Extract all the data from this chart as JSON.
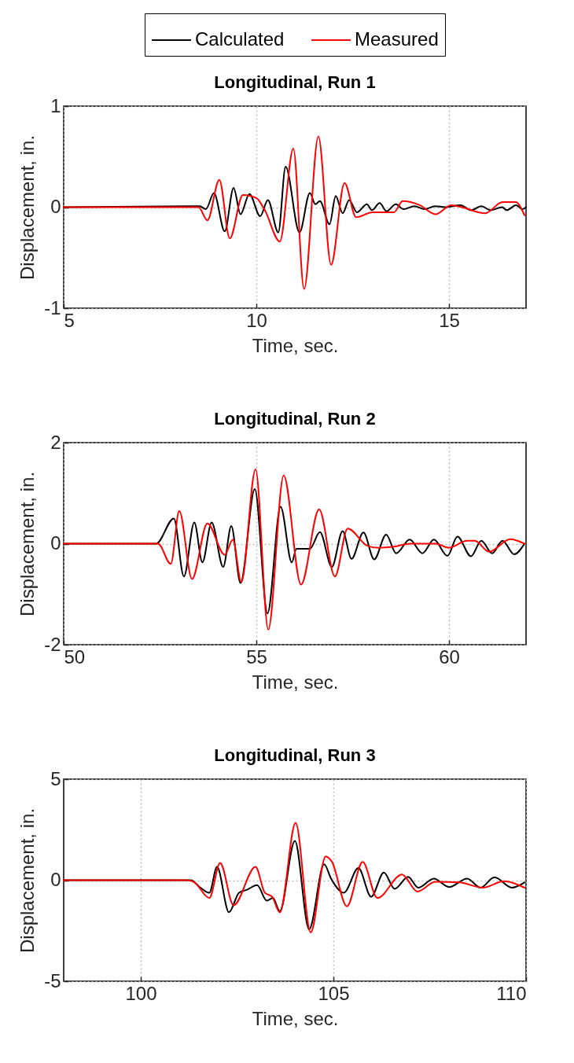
{
  "chart_data": [
    {
      "type": "line",
      "title": "Longitudinal, Run 1",
      "xlabel": "Time, sec.",
      "ylabel": "Displacement, in.",
      "xlim": [
        5,
        17
      ],
      "xticks": [
        5,
        10,
        15
      ],
      "ylim": [
        -1,
        1
      ],
      "yticks": [
        -1,
        0,
        1
      ],
      "grid": true,
      "legend": "top",
      "series": [
        {
          "name": "Calculated",
          "color": "#000000",
          "x": [
            5,
            8.53,
            8.69,
            8.9,
            9.18,
            9.41,
            9.59,
            9.82,
            10.1,
            10.3,
            10.57,
            10.76,
            11.12,
            11.39,
            11.53,
            11.65,
            11.9,
            12.06,
            12.24,
            12.41,
            12.61,
            12.87,
            13.0,
            13.2,
            13.38,
            13.62,
            13.82,
            14.1,
            14.37,
            14.64,
            14.9,
            15.3,
            15.57,
            15.84,
            16.08,
            16.38,
            16.5,
            16.74,
            16.91,
            17
          ],
          "values": [
            0,
            0.01,
            -0.02,
            0.14,
            -0.24,
            0.19,
            -0.07,
            0.13,
            -0.09,
            0.07,
            -0.25,
            0.4,
            -0.25,
            0.14,
            0.03,
            0.06,
            -0.17,
            0.11,
            -0.06,
            0.07,
            -0.05,
            0.03,
            -0.03,
            0.04,
            -0.04,
            0.03,
            -0.02,
            0.01,
            -0.02,
            0.01,
            0,
            0.02,
            -0.03,
            0.01,
            -0.03,
            0,
            -0.03,
            0.02,
            -0.02,
            0
          ]
        },
        {
          "name": "Measured",
          "color": "#ff0000",
          "x": [
            5,
            8.5,
            8.73,
            9.04,
            9.31,
            9.65,
            10.0,
            10.22,
            10.61,
            10.96,
            11.24,
            11.61,
            11.94,
            12.29,
            12.59,
            13.02,
            13.57,
            13.8,
            14.24,
            14.65,
            15.06,
            15.33,
            15.94,
            16.39,
            16.73,
            16.96
          ],
          "values": [
            0,
            0,
            -0.13,
            0.27,
            -0.31,
            0.12,
            0.09,
            -0.03,
            -0.34,
            0.58,
            -0.81,
            0.7,
            -0.57,
            0.24,
            -0.1,
            -0.05,
            -0.05,
            0.06,
            0.02,
            -0.07,
            0.02,
            0,
            -0.06,
            0.05,
            0.05,
            -0.08
          ]
        }
      ]
    },
    {
      "type": "line",
      "title": "Longitudinal, Run 2",
      "xlabel": "Time, sec.",
      "ylabel": "Displacement, in.",
      "xlim": [
        50,
        62
      ],
      "xticks": [
        50,
        55,
        60
      ],
      "ylim": [
        -2,
        2
      ],
      "yticks": [
        -2,
        0,
        2
      ],
      "grid": true,
      "series": [
        {
          "name": "Calculated",
          "color": "#000000",
          "x": [
            50,
            52.4,
            52.86,
            53.12,
            53.39,
            53.6,
            53.84,
            54.14,
            54.35,
            54.59,
            54.96,
            55.29,
            55.63,
            55.92,
            56.04,
            56.39,
            56.65,
            56.96,
            57.24,
            57.47,
            57.78,
            58.06,
            58.37,
            58.63,
            58.98,
            59.31,
            59.61,
            59.96,
            60.22,
            60.57,
            60.84,
            61.12,
            61.39,
            61.69,
            61.96
          ],
          "values": [
            0,
            0,
            0.5,
            -0.65,
            0.42,
            -0.37,
            0.42,
            -0.46,
            0.35,
            -0.78,
            1.08,
            -1.38,
            0.73,
            -0.37,
            -0.1,
            -0.1,
            0.23,
            -0.46,
            0.25,
            -0.3,
            0.22,
            -0.31,
            0.18,
            -0.19,
            0.08,
            -0.19,
            0.08,
            -0.24,
            0.14,
            -0.25,
            0.06,
            -0.19,
            0.06,
            -0.21,
            0
          ]
        },
        {
          "name": "Measured",
          "color": "#ff0000",
          "x": [
            50,
            52.45,
            52.78,
            53.0,
            53.33,
            53.73,
            54.18,
            54.39,
            54.61,
            54.98,
            55.31,
            55.71,
            56.16,
            56.63,
            57.04,
            57.37,
            57.88,
            58.16,
            58.57,
            58.98,
            59.65,
            60.0,
            60.47,
            60.67,
            61.04,
            61.59,
            61.96
          ],
          "values": [
            0,
            0,
            -0.4,
            0.65,
            -0.7,
            0.4,
            -0.22,
            0.08,
            -0.76,
            1.47,
            -1.7,
            1.35,
            -0.81,
            0.68,
            -0.65,
            0.3,
            -0.04,
            -0.08,
            -0.06,
            0,
            0,
            -0.08,
            0.06,
            0.06,
            -0.16,
            0.09,
            0
          ]
        }
      ]
    },
    {
      "type": "line",
      "title": "Longitudinal, Run 3",
      "xlabel": "Time, sec.",
      "ylabel": "Displacement, in.",
      "xlim": [
        98,
        110
      ],
      "xticks": [
        100,
        105,
        110
      ],
      "ylim": [
        -5,
        5
      ],
      "yticks": [
        -5,
        0,
        5
      ],
      "grid": true,
      "series": [
        {
          "name": "Calculated",
          "color": "#000000",
          "x": [
            98,
            101.3,
            101.53,
            101.78,
            101.98,
            102.29,
            102.55,
            102.76,
            103.02,
            103.27,
            103.43,
            103.61,
            104.0,
            104.37,
            104.76,
            104.94,
            105.27,
            105.65,
            105.98,
            106.31,
            106.59,
            106.94,
            107.2,
            107.61,
            108.0,
            108.47,
            108.82,
            109.18,
            109.63,
            109.96
          ],
          "values": [
            0,
            0,
            -0.34,
            -0.62,
            0.66,
            -1.59,
            -0.62,
            -0.47,
            -0.24,
            -1.01,
            -0.88,
            -1.53,
            1.95,
            -2.43,
            0.79,
            0.08,
            -0.62,
            0.6,
            -0.82,
            0.38,
            -0.43,
            0.17,
            -0.37,
            0.08,
            -0.34,
            0.08,
            -0.37,
            0.15,
            -0.37,
            -0.11
          ]
        },
        {
          "name": "Measured",
          "color": "#ff0000",
          "x": [
            98,
            101.2,
            101.39,
            101.78,
            102.06,
            102.41,
            102.98,
            103.22,
            103.41,
            103.61,
            104.02,
            104.41,
            104.8,
            104.96,
            105.35,
            105.76,
            106.14,
            106.78,
            107.18,
            107.65,
            108.27,
            108.88,
            109.43,
            109.96
          ],
          "values": [
            0,
            0,
            -0.1,
            -0.88,
            0.86,
            -1.24,
            0.66,
            -0.62,
            -0.82,
            -1.59,
            2.84,
            -2.58,
            1.18,
            0.92,
            -1.29,
            0.9,
            -0.88,
            0.28,
            -0.56,
            -0.08,
            -0.11,
            -0.37,
            -0.05,
            -0.37
          ]
        }
      ]
    }
  ]
}
